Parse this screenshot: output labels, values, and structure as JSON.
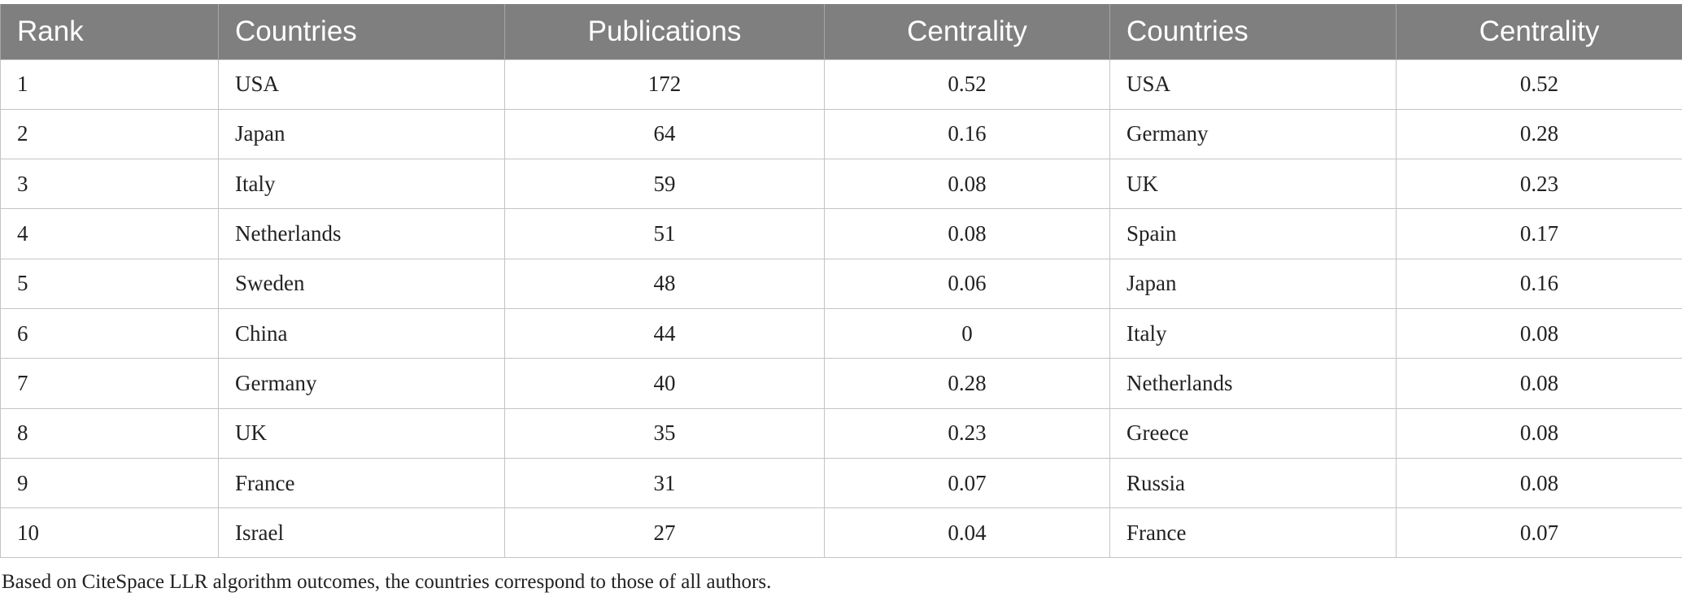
{
  "table": {
    "headers": [
      "Rank",
      "Countries",
      "Publications",
      "Centrality",
      "Countries",
      "Centrality"
    ],
    "rows": [
      [
        "1",
        "USA",
        "172",
        "0.52",
        "USA",
        "0.52"
      ],
      [
        "2",
        "Japan",
        "64",
        "0.16",
        "Germany",
        "0.28"
      ],
      [
        "3",
        "Italy",
        "59",
        "0.08",
        "UK",
        "0.23"
      ],
      [
        "4",
        "Netherlands",
        "51",
        "0.08",
        "Spain",
        "0.17"
      ],
      [
        "5",
        "Sweden",
        "48",
        "0.06",
        "Japan",
        "0.16"
      ],
      [
        "6",
        "China",
        "44",
        "0",
        "Italy",
        "0.08"
      ],
      [
        "7",
        "Germany",
        "40",
        "0.28",
        "Netherlands",
        "0.08"
      ],
      [
        "8",
        "UK",
        "35",
        "0.23",
        "Greece",
        "0.08"
      ],
      [
        "9",
        "France",
        "31",
        "0.07",
        "Russia",
        "0.08"
      ],
      [
        "10",
        "Israel",
        "27",
        "0.04",
        "France",
        "0.07"
      ]
    ]
  },
  "footnote": "Based on CiteSpace LLR algorithm outcomes, the countries correspond to those of all authors.",
  "colors": {
    "header_background": "#7f7f7f",
    "header_text": "#ffffff",
    "grid_line": "#c4c4c4"
  }
}
